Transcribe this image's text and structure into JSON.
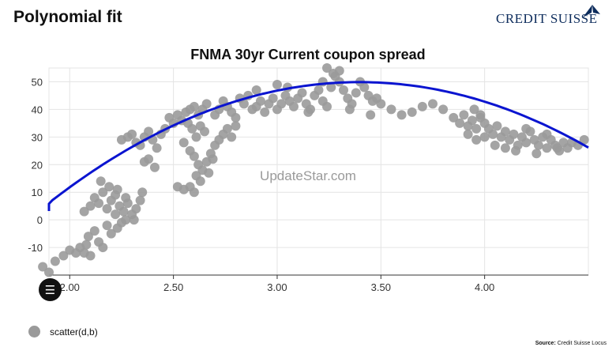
{
  "slide_title": "Polynomial fit",
  "logo_text": "CREDIT SUISSE",
  "watermark": "UpdateStar.com",
  "source_label": "Source:",
  "source_text": "Credit Suisse Locus",
  "colors": {
    "scatter": "#9a9a9a",
    "fit": "#0a14d0",
    "grid": "#e4e4e4",
    "logo": "#0d2c5c"
  },
  "icons": {
    "menu": "menu-icon"
  },
  "chart_data": {
    "type": "scatter",
    "title": "FNMA 30yr Current coupon spread",
    "xlabel": "",
    "ylabel": "",
    "xlim": [
      1.9,
      4.5
    ],
    "ylim": [
      -20,
      55
    ],
    "x_ticks": [
      "2.00",
      "2.50",
      "3.00",
      "3.50",
      "4.00"
    ],
    "y_ticks": [
      "-10",
      "0",
      "10",
      "20",
      "30",
      "40",
      "50"
    ],
    "grid": true,
    "legend": "bottom-left",
    "series": [
      {
        "name": "scatter(d,b)",
        "points": [
          [
            1.87,
            -17
          ],
          [
            1.9,
            -19
          ],
          [
            1.93,
            -15
          ],
          [
            1.97,
            -13
          ],
          [
            2.0,
            -11
          ],
          [
            2.03,
            -12
          ],
          [
            2.05,
            -10
          ],
          [
            2.07,
            -12
          ],
          [
            2.08,
            -9
          ],
          [
            2.1,
            -13
          ],
          [
            2.09,
            -6
          ],
          [
            2.12,
            -4
          ],
          [
            2.14,
            -8
          ],
          [
            2.16,
            -10
          ],
          [
            2.18,
            -2
          ],
          [
            2.2,
            -5
          ],
          [
            2.23,
            -3
          ],
          [
            2.25,
            -1
          ],
          [
            2.22,
            2
          ],
          [
            2.27,
            0
          ],
          [
            2.07,
            3
          ],
          [
            2.1,
            5
          ],
          [
            2.12,
            8
          ],
          [
            2.14,
            6
          ],
          [
            2.16,
            10
          ],
          [
            2.18,
            4
          ],
          [
            2.2,
            7
          ],
          [
            2.22,
            9
          ],
          [
            2.24,
            5
          ],
          [
            2.26,
            3
          ],
          [
            2.28,
            6
          ],
          [
            2.3,
            2
          ],
          [
            2.32,
            4
          ],
          [
            2.34,
            7
          ],
          [
            2.35,
            10
          ],
          [
            2.15,
            14
          ],
          [
            2.19,
            12
          ],
          [
            2.23,
            11
          ],
          [
            2.27,
            8
          ],
          [
            2.31,
            0
          ],
          [
            2.25,
            29
          ],
          [
            2.28,
            30
          ],
          [
            2.3,
            31
          ],
          [
            2.32,
            28
          ],
          [
            2.34,
            27
          ],
          [
            2.36,
            30
          ],
          [
            2.38,
            32
          ],
          [
            2.4,
            29
          ],
          [
            2.42,
            26
          ],
          [
            2.44,
            31
          ],
          [
            2.36,
            21
          ],
          [
            2.38,
            22
          ],
          [
            2.41,
            19
          ],
          [
            2.46,
            33
          ],
          [
            2.48,
            37
          ],
          [
            2.5,
            35
          ],
          [
            2.52,
            38
          ],
          [
            2.54,
            36
          ],
          [
            2.56,
            39
          ],
          [
            2.58,
            40
          ],
          [
            2.6,
            41
          ],
          [
            2.62,
            38
          ],
          [
            2.64,
            40
          ],
          [
            2.66,
            42
          ],
          [
            2.57,
            35
          ],
          [
            2.59,
            33
          ],
          [
            2.61,
            30
          ],
          [
            2.63,
            34
          ],
          [
            2.65,
            32
          ],
          [
            2.55,
            28
          ],
          [
            2.58,
            25
          ],
          [
            2.6,
            23
          ],
          [
            2.62,
            20
          ],
          [
            2.64,
            18
          ],
          [
            2.66,
            21
          ],
          [
            2.68,
            24
          ],
          [
            2.61,
            16
          ],
          [
            2.63,
            14
          ],
          [
            2.67,
            17
          ],
          [
            2.69,
            22
          ],
          [
            2.52,
            12
          ],
          [
            2.55,
            11
          ],
          [
            2.58,
            12
          ],
          [
            2.6,
            10
          ],
          [
            2.7,
            27
          ],
          [
            2.72,
            29
          ],
          [
            2.74,
            31
          ],
          [
            2.76,
            33
          ],
          [
            2.78,
            30
          ],
          [
            2.8,
            34
          ],
          [
            2.7,
            38
          ],
          [
            2.72,
            40
          ],
          [
            2.74,
            43
          ],
          [
            2.76,
            41
          ],
          [
            2.78,
            39
          ],
          [
            2.8,
            37
          ],
          [
            2.82,
            44
          ],
          [
            2.84,
            42
          ],
          [
            2.86,
            45
          ],
          [
            2.88,
            40
          ],
          [
            2.9,
            41
          ],
          [
            2.92,
            43
          ],
          [
            2.94,
            39
          ],
          [
            2.96,
            42
          ],
          [
            2.98,
            44
          ],
          [
            3.0,
            40
          ],
          [
            3.02,
            42
          ],
          [
            3.04,
            45
          ],
          [
            3.06,
            43
          ],
          [
            3.08,
            41
          ],
          [
            3.1,
            44
          ],
          [
            3.12,
            46
          ],
          [
            3.14,
            42
          ],
          [
            3.16,
            40
          ],
          [
            3.18,
            45
          ],
          [
            3.2,
            47
          ],
          [
            3.22,
            43
          ],
          [
            3.24,
            41
          ],
          [
            3.26,
            48
          ],
          [
            3.28,
            52
          ],
          [
            3.3,
            50
          ],
          [
            3.32,
            47
          ],
          [
            3.34,
            44
          ],
          [
            3.36,
            42
          ],
          [
            3.38,
            46
          ],
          [
            3.4,
            50
          ],
          [
            3.42,
            48
          ],
          [
            3.44,
            45
          ],
          [
            3.46,
            43
          ],
          [
            3.48,
            44
          ],
          [
            3.24,
            55
          ],
          [
            3.27,
            53
          ],
          [
            3.3,
            54
          ],
          [
            3.22,
            50
          ],
          [
            3.0,
            49
          ],
          [
            3.05,
            48
          ],
          [
            2.9,
            47
          ],
          [
            3.15,
            39
          ],
          [
            3.35,
            40
          ],
          [
            3.45,
            38
          ],
          [
            3.5,
            42
          ],
          [
            3.55,
            40
          ],
          [
            3.6,
            38
          ],
          [
            3.65,
            39
          ],
          [
            3.7,
            41
          ],
          [
            3.75,
            42
          ],
          [
            3.8,
            40
          ],
          [
            3.85,
            37
          ],
          [
            3.88,
            35
          ],
          [
            3.9,
            38
          ],
          [
            3.92,
            34
          ],
          [
            3.94,
            36
          ],
          [
            3.96,
            33
          ],
          [
            3.98,
            37
          ],
          [
            4.0,
            35
          ],
          [
            3.95,
            40
          ],
          [
            3.98,
            38
          ],
          [
            4.02,
            33
          ],
          [
            4.04,
            31
          ],
          [
            4.06,
            34
          ],
          [
            4.08,
            30
          ],
          [
            4.1,
            32
          ],
          [
            4.12,
            29
          ],
          [
            4.14,
            31
          ],
          [
            4.16,
            27
          ],
          [
            4.18,
            30
          ],
          [
            4.2,
            28
          ],
          [
            4.22,
            32
          ],
          [
            4.24,
            29
          ],
          [
            4.26,
            27
          ],
          [
            4.28,
            30
          ],
          [
            4.3,
            26
          ],
          [
            4.32,
            29
          ],
          [
            4.34,
            27
          ],
          [
            4.36,
            25
          ],
          [
            4.38,
            28
          ],
          [
            4.4,
            26
          ],
          [
            4.42,
            28
          ],
          [
            4.45,
            27
          ],
          [
            4.48,
            29
          ],
          [
            4.1,
            26
          ],
          [
            4.15,
            25
          ],
          [
            4.25,
            24
          ],
          [
            4.35,
            26
          ],
          [
            4.05,
            27
          ],
          [
            3.92,
            31
          ],
          [
            3.96,
            29
          ],
          [
            4.0,
            30
          ],
          [
            4.2,
            33
          ],
          [
            4.3,
            31
          ]
        ]
      }
    ],
    "fit": {
      "name": "polynomial fit",
      "coefficients": [
        -175.2,
        132.5,
        -19.5
      ]
    }
  }
}
